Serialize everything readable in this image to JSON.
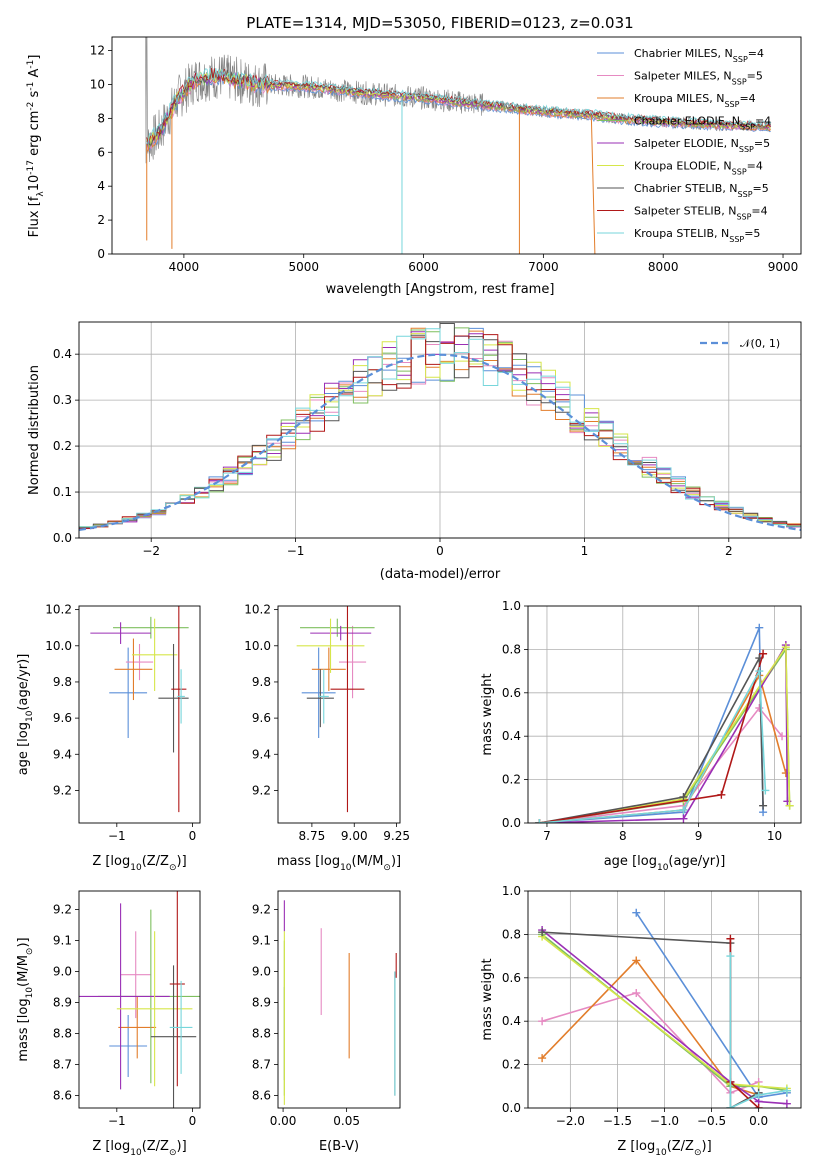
{
  "colors": [
    "#5b8fd8",
    "#e68ac2",
    "#e27d2b",
    "#7fbf5f",
    "#9a2fb5",
    "#d6e64a",
    "#555555",
    "#b01818",
    "#77d6db"
  ],
  "chart_data": [
    {
      "id": "spectrum",
      "type": "line",
      "title": "PLATE=1314, MJD=53050, FIBERID=0123, z=0.031",
      "xlabel": "wavelength [Angstrom, rest frame]",
      "ylabel_parts": [
        "Flux [f",
        "λ",
        "10",
        "-17",
        " erg cm",
        "-2",
        " s",
        "-1",
        " A",
        "-1",
        "]"
      ],
      "xlim": [
        3400,
        9150
      ],
      "ylim": [
        0,
        12.8
      ],
      "xticks": [
        4000,
        5000,
        6000,
        7000,
        8000,
        9000
      ],
      "yticks": [
        0,
        2,
        4,
        6,
        8,
        10,
        12
      ],
      "series": [
        {
          "label": "Chabrier MILES",
          "nssp": "4"
        },
        {
          "label": "Salpeter MILES",
          "nssp": "5"
        },
        {
          "label": "Kroupa MILES",
          "nssp": "4"
        },
        {
          "label": "Chabrier ELODIE",
          "nssp": "4"
        },
        {
          "label": "Salpeter ELODIE",
          "nssp": "5"
        },
        {
          "label": "Kroupa ELODIE",
          "nssp": "4"
        },
        {
          "label": "Chabrier STELIB",
          "nssp": "5"
        },
        {
          "label": "Salpeter STELIB",
          "nssp": "4"
        },
        {
          "label": "Kroupa STELIB",
          "nssp": "5"
        }
      ],
      "legend_nssp_prefix": "N",
      "legend_nssp_sub": "SSP",
      "continuum": [
        [
          3680,
          6.4
        ],
        [
          3800,
          7.2
        ],
        [
          3950,
          9.2
        ],
        [
          4100,
          10.3
        ],
        [
          4300,
          10.5
        ],
        [
          4600,
          10.0
        ],
        [
          5000,
          9.9
        ],
        [
          5500,
          9.5
        ],
        [
          6000,
          9.2
        ],
        [
          6500,
          8.8
        ],
        [
          7000,
          8.4
        ],
        [
          7400,
          8.2
        ],
        [
          7600,
          8.0
        ],
        [
          8000,
          7.8
        ],
        [
          8500,
          7.6
        ],
        [
          8900,
          7.5
        ]
      ],
      "absorption_dips": [
        [
          5820,
          0
        ],
        [
          6800,
          0
        ],
        [
          3900,
          0.3
        ],
        [
          3690,
          0.8
        ]
      ]
    },
    {
      "id": "residuals",
      "type": "line",
      "xlabel": "(data-model)/error",
      "ylabel": "Normed distribution",
      "xlim": [
        -2.5,
        2.5
      ],
      "ylim": [
        0,
        0.47
      ],
      "xticks": [
        -2,
        -1,
        0,
        1,
        2
      ],
      "xticklabels": [
        "−2",
        "−1",
        "0",
        "1",
        "2"
      ],
      "yticks": [
        0,
        0.1,
        0.2,
        0.3,
        0.4
      ],
      "yticklabels": [
        "0.0",
        "0.1",
        "0.2",
        "0.3",
        "0.4"
      ],
      "grid": true,
      "legend": "top-right",
      "gauss_label": "𝒩(0, 1)",
      "bin_width": 0.1
    },
    {
      "id": "age-vs-z",
      "type": "scatter",
      "xlabel_parts": [
        "Z [log",
        "10",
        "(Z/Z",
        "⊙",
        ")]"
      ],
      "ylabel_parts": [
        "age  [log",
        "10",
        "(age/yr)]"
      ],
      "xlim": [
        -1.5,
        0.1
      ],
      "ylim": [
        9.02,
        10.22
      ],
      "xticks": [
        -1,
        0
      ],
      "xticklabels": [
        "−1",
        "0"
      ],
      "yticks": [
        9.2,
        9.4,
        9.6,
        9.8,
        10.0,
        10.2
      ],
      "yticklabels": [
        "9.2",
        "9.4",
        "9.6",
        "9.8",
        "10.0",
        "10.2"
      ],
      "points": [
        {
          "x": -0.85,
          "y": 9.74,
          "ex": 0.25,
          "ey": 0.25
        },
        {
          "x": -0.7,
          "y": 9.91,
          "ex": 0.18,
          "ey": 0.1
        },
        {
          "x": -0.78,
          "y": 9.87,
          "ex": 0.25,
          "ey": 0.17
        },
        {
          "x": -0.55,
          "y": 10.1,
          "ex": 0.5,
          "ey": 0.06
        },
        {
          "x": -0.95,
          "y": 10.07,
          "ex": 0.4,
          "ey": 0.06
        },
        {
          "x": -0.5,
          "y": 9.95,
          "ex": 0.3,
          "ey": 0.2
        },
        {
          "x": -0.25,
          "y": 9.71,
          "ex": 0.2,
          "ey": 0.3
        },
        {
          "x": -0.18,
          "y": 9.76,
          "ex": 0.1,
          "ey": 0.68
        },
        {
          "x": -0.15,
          "y": 9.72,
          "ex": 0.05,
          "ey": 0.15
        }
      ]
    },
    {
      "id": "age-vs-mass",
      "type": "scatter",
      "xlabel_parts": [
        "mass [log",
        "10",
        "(M/M",
        "⊙",
        ")]"
      ],
      "xlim": [
        8.55,
        9.27
      ],
      "ylim": [
        9.02,
        10.22
      ],
      "xticks": [
        8.75,
        9.0,
        9.25
      ],
      "xticklabels": [
        "8.75",
        "9.00",
        "9.25"
      ],
      "yticks": [
        9.2,
        9.4,
        9.6,
        9.8,
        10.0,
        10.2
      ],
      "yticklabels": [
        "9.2",
        "9.4",
        "9.6",
        "9.8",
        "10.0",
        "10.2"
      ],
      "points": [
        {
          "x": 8.79,
          "y": 9.74,
          "ex": 0.1,
          "ey": 0.25
        },
        {
          "x": 8.99,
          "y": 9.91,
          "ex": 0.08,
          "ey": 0.2
        },
        {
          "x": 8.85,
          "y": 9.87,
          "ex": 0.1,
          "ey": 0.12
        },
        {
          "x": 8.9,
          "y": 10.1,
          "ex": 0.22,
          "ey": 0.05
        },
        {
          "x": 8.92,
          "y": 10.07,
          "ex": 0.18,
          "ey": 0.04
        },
        {
          "x": 8.86,
          "y": 10.0,
          "ex": 0.2,
          "ey": 0.15
        },
        {
          "x": 8.8,
          "y": 9.71,
          "ex": 0.08,
          "ey": 0.16
        },
        {
          "x": 8.96,
          "y": 9.76,
          "ex": 0.1,
          "ey": 0.68
        },
        {
          "x": 8.82,
          "y": 9.72,
          "ex": 0.03,
          "ey": 0.15
        }
      ]
    },
    {
      "id": "weight-vs-age",
      "type": "line",
      "xlabel_parts": [
        "age  [log",
        "10",
        "(age/yr)]"
      ],
      "ylabel": "mass weight",
      "xlim": [
        6.75,
        10.35
      ],
      "ylim": [
        0,
        1.0
      ],
      "xticks": [
        7,
        8,
        9,
        10
      ],
      "xticklabels": [
        "7",
        "8",
        "9",
        "10"
      ],
      "yticks": [
        0,
        0.2,
        0.4,
        0.6,
        0.8,
        1.0
      ],
      "yticklabels": [
        "0.0",
        "0.2",
        "0.4",
        "0.6",
        "0.8",
        "1.0"
      ],
      "grid": true,
      "series": [
        [
          [
            6.9,
            0.0
          ],
          [
            8.8,
            0.05
          ],
          [
            9.8,
            0.9
          ],
          [
            9.85,
            0.05
          ]
        ],
        [
          [
            6.9,
            0.0
          ],
          [
            8.8,
            0.08
          ],
          [
            9.8,
            0.53
          ],
          [
            10.1,
            0.4
          ]
        ],
        [
          [
            6.9,
            0.0
          ],
          [
            8.8,
            0.06
          ],
          [
            9.8,
            0.68
          ],
          [
            10.15,
            0.23
          ]
        ],
        [
          [
            6.9,
            0.0
          ],
          [
            8.8,
            0.1
          ],
          [
            10.15,
            0.8
          ],
          [
            10.2,
            0.08
          ]
        ],
        [
          [
            6.9,
            0.0
          ],
          [
            8.8,
            0.02
          ],
          [
            10.15,
            0.82
          ],
          [
            10.17,
            0.1
          ]
        ],
        [
          [
            6.9,
            0.0
          ],
          [
            8.8,
            0.11
          ],
          [
            10.15,
            0.81
          ],
          [
            10.2,
            0.08
          ]
        ],
        [
          [
            6.9,
            0.0
          ],
          [
            8.8,
            0.12
          ],
          [
            9.8,
            0.76
          ],
          [
            9.85,
            0.08
          ]
        ],
        [
          [
            6.9,
            0.0
          ],
          [
            9.3,
            0.13
          ],
          [
            9.85,
            0.78
          ]
        ],
        [
          [
            6.9,
            0.0
          ],
          [
            8.8,
            0.06
          ],
          [
            9.8,
            0.7
          ],
          [
            9.88,
            0.15
          ]
        ]
      ]
    },
    {
      "id": "mass-vs-z",
      "type": "scatter",
      "xlabel_parts": [
        "Z [log",
        "10",
        "(Z/Z",
        "⊙",
        ")]"
      ],
      "ylabel_parts": [
        "mass [log",
        "10",
        "(M/M",
        "⊙",
        ")]"
      ],
      "xlim": [
        -1.5,
        0.1
      ],
      "ylim": [
        8.56,
        9.26
      ],
      "xticks": [
        -1,
        0
      ],
      "xticklabels": [
        "−1",
        "0"
      ],
      "yticks": [
        8.6,
        8.7,
        8.8,
        8.9,
        9.0,
        9.1,
        9.2
      ],
      "yticklabels": [
        "8.6",
        "8.7",
        "8.8",
        "8.9",
        "9.0",
        "9.1",
        "9.2"
      ],
      "points": [
        {
          "x": -0.85,
          "y": 8.76,
          "ex": 0.25,
          "ey": 0.1
        },
        {
          "x": -0.75,
          "y": 8.99,
          "ex": 0.2,
          "ey": 0.14
        },
        {
          "x": -0.73,
          "y": 8.82,
          "ex": 0.25,
          "ey": 0.1
        },
        {
          "x": -0.55,
          "y": 8.92,
          "ex": 0.7,
          "ey": 0.28
        },
        {
          "x": -0.95,
          "y": 8.92,
          "ex": 0.65,
          "ey": 0.3
        },
        {
          "x": -0.5,
          "y": 8.88,
          "ex": 0.5,
          "ey": 0.25
        },
        {
          "x": -0.25,
          "y": 8.79,
          "ex": 0.3,
          "ey": 0.23
        },
        {
          "x": -0.2,
          "y": 8.96,
          "ex": 0.1,
          "ey": 0.33
        },
        {
          "x": -0.15,
          "y": 8.82,
          "ex": 0.15,
          "ey": 0.15
        }
      ]
    },
    {
      "id": "mass-vs-ebv",
      "type": "scatter",
      "xlabel": "E(B-V)",
      "xlim": [
        -0.004,
        0.092
      ],
      "ylim": [
        8.56,
        9.26
      ],
      "xticks": [
        0,
        0.05
      ],
      "xticklabels": [
        "0.00",
        "0.05"
      ],
      "yticks": [
        8.6,
        8.7,
        8.8,
        8.9,
        9.0,
        9.1,
        9.2
      ],
      "yticklabels": [
        "8.6",
        "8.7",
        "8.8",
        "8.9",
        "9.0",
        "9.1",
        "9.2"
      ],
      "points": [
        {
          "x": 0.001,
          "y": 8.8,
          "ex": 0,
          "ey": 0.15
        },
        {
          "x": 0.03,
          "y": 9.0,
          "ex": 0,
          "ey": 0.14
        },
        {
          "x": 0.052,
          "y": 8.89,
          "ex": 0,
          "ey": 0.17
        },
        {
          "x": 0.001,
          "y": 8.85,
          "ex": 0,
          "ey": 0.25
        },
        {
          "x": 0.001,
          "y": 9.18,
          "ex": 0,
          "ey": 0.05
        },
        {
          "x": 0.001,
          "y": 8.85,
          "ex": 0,
          "ey": 0.28
        },
        {
          "x": 0.088,
          "y": 8.8,
          "ex": 0,
          "ey": 0.2
        },
        {
          "x": 0.089,
          "y": 9.02,
          "ex": 0,
          "ey": 0.04
        },
        {
          "x": 0.088,
          "y": 8.8,
          "ex": 0,
          "ey": 0.2
        }
      ]
    },
    {
      "id": "weight-vs-z",
      "type": "line",
      "xlabel_parts": [
        "Z [log",
        "10",
        "(Z/Z",
        "⊙",
        ")]"
      ],
      "ylabel": "mass weight",
      "xlim": [
        -2.45,
        0.45
      ],
      "ylim": [
        0,
        1.0
      ],
      "xticks": [
        -2.0,
        -1.5,
        -1.0,
        -0.5,
        0.0
      ],
      "xticklabels": [
        "−2.0",
        "−1.5",
        "−1.0",
        "−0.5",
        "0.0"
      ],
      "yticks": [
        0,
        0.2,
        0.4,
        0.6,
        0.8,
        1.0
      ],
      "yticklabels": [
        "0.0",
        "0.2",
        "0.4",
        "0.6",
        "0.8",
        "1.0"
      ],
      "grid": true,
      "series": [
        [
          [
            -1.3,
            0.9
          ],
          [
            0.0,
            0.05
          ],
          [
            0.3,
            0.07
          ]
        ],
        [
          [
            -2.3,
            0.4
          ],
          [
            -1.3,
            0.53
          ],
          [
            -0.3,
            0.07
          ],
          [
            0.0,
            0.12
          ]
        ],
        [
          [
            -2.3,
            0.23
          ],
          [
            -1.3,
            0.68
          ],
          [
            -0.3,
            0.1
          ],
          [
            0.0,
            0.06
          ]
        ],
        [
          [
            -2.3,
            0.8
          ],
          [
            -0.3,
            0.1
          ],
          [
            0.0,
            0.1
          ],
          [
            0.3,
            0.08
          ]
        ],
        [
          [
            -2.3,
            0.82
          ],
          [
            -0.3,
            0.12
          ],
          [
            0.0,
            0.03
          ],
          [
            0.3,
            0.02
          ]
        ],
        [
          [
            -2.3,
            0.79
          ],
          [
            -0.3,
            0.11
          ],
          [
            0.0,
            0.1
          ],
          [
            0.3,
            0.09
          ]
        ],
        [
          [
            -2.3,
            0.81
          ],
          [
            -0.3,
            0.76
          ],
          [
            -0.3,
            0.0
          ],
          [
            0.0,
            0.07
          ]
        ],
        [
          [
            -0.3,
            0.78
          ],
          [
            -0.3,
            0.12
          ],
          [
            0.0,
            0.0
          ]
        ],
        [
          [
            -0.3,
            0.7
          ],
          [
            -0.3,
            0.0
          ],
          [
            0.0,
            0.06
          ],
          [
            0.3,
            0.08
          ]
        ]
      ]
    }
  ]
}
